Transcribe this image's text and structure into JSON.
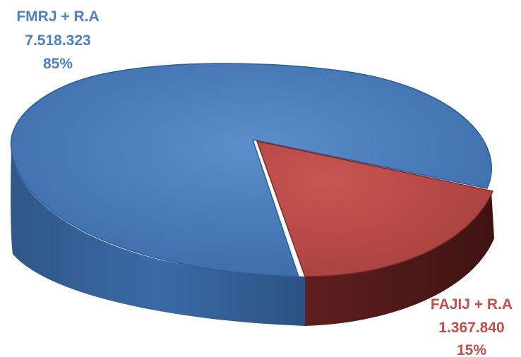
{
  "chart_data": {
    "type": "pie",
    "style": "3d",
    "slices": [
      {
        "label": "FMRJ + R.A",
        "value": 7518323,
        "value_label": "7.518.323",
        "percent_label": "85%",
        "color": "#4F81BD"
      },
      {
        "label": "FAJIJ + R.A",
        "value": 1367840,
        "value_label": "1.367.840",
        "percent_label": "15%",
        "color": "#C0504D"
      }
    ],
    "labels": [
      {
        "name": "FMRJ + R.A",
        "value": "7.518.323",
        "percent": "85%",
        "color": "#4F81BD"
      },
      {
        "name": "FAJIJ + R.A",
        "value": "1.367.840",
        "percent": "15%",
        "color": "#C0504D"
      }
    ]
  }
}
